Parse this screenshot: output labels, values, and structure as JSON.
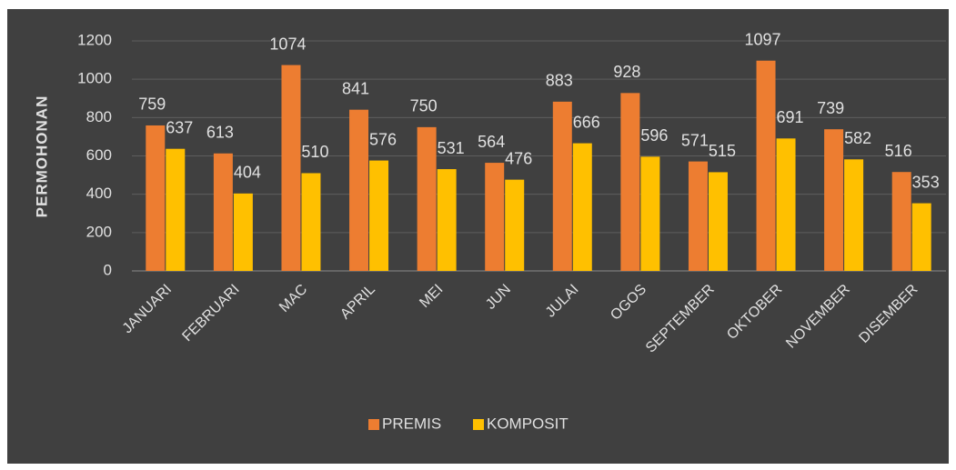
{
  "chart_data": {
    "type": "bar",
    "y_label": "PERMOHONAN",
    "categories": [
      "JANUARI",
      "FEBRUARI",
      "MAC",
      "APRIL",
      "MEI",
      "JUN",
      "JULAI",
      "OGOS",
      "SEPTEMBER",
      "OKTOBER",
      "NOVEMBER",
      "DISEMBER"
    ],
    "series": [
      {
        "name": "PREMIS",
        "color": "#ed7d31",
        "values": [
          759,
          613,
          1074,
          841,
          750,
          564,
          883,
          928,
          571,
          1097,
          739,
          516
        ]
      },
      {
        "name": "KOMPOSIT",
        "color": "#ffc000",
        "values": [
          637,
          404,
          510,
          576,
          531,
          476,
          666,
          596,
          515,
          691,
          582,
          353
        ]
      }
    ],
    "ylim": [
      0,
      1200
    ],
    "yticks": [
      0,
      200,
      400,
      600,
      800,
      1000,
      1200
    ],
    "grid": true,
    "legend": "bottom"
  }
}
